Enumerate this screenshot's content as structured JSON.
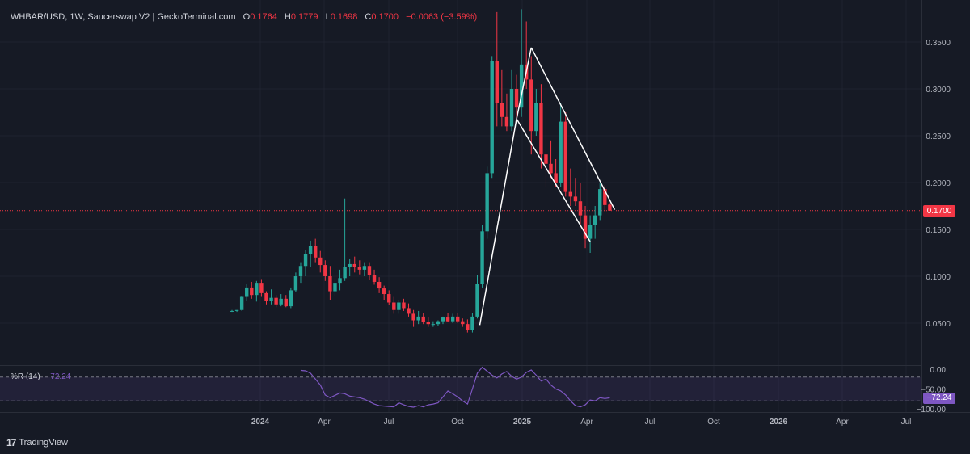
{
  "header": {
    "symbol": "WHBAR/USD, 1W, Saucerswap V2 | GeckoTerminal.com",
    "o_label": "O",
    "o_value": "0.1764",
    "h_label": "H",
    "h_value": "0.1779",
    "l_label": "L",
    "l_value": "0.1698",
    "c_label": "C",
    "c_value": "0.1700",
    "change": "−0.0063 (−3.59%)"
  },
  "last_price_tag": "0.1700",
  "rsi": {
    "label": "%R (14)",
    "value": "−72.24",
    "tag": "−72.24"
  },
  "brand": {
    "logo": "17",
    "name": "TradingView"
  },
  "colors": {
    "up": "#26a69a",
    "down": "#f23645",
    "background": "#161a25",
    "indicator": "#7e57c2",
    "pattern": "#ffffff"
  },
  "chart_data": [
    {
      "type": "candlestick",
      "title": "WHBAR/USD, 1W",
      "x_axis_labels": [
        "2024",
        "Apr",
        "Jul",
        "Oct",
        "2025",
        "Apr",
        "Jul",
        "Oct",
        "2026",
        "Apr",
        "Jul"
      ],
      "x_axis_bold": [
        "2024",
        "2025",
        "2026"
      ],
      "y_axis_labels": [
        "0.3500",
        "0.3000",
        "0.2500",
        "0.2000",
        "0.1500",
        "0.1000",
        "0.0500"
      ],
      "ylim": [
        0.0,
        0.385
      ],
      "grid": true,
      "last_price": 0.17,
      "candles": [
        [
          0.063,
          0.064,
          0.062,
          0.063
        ],
        [
          0.063,
          0.064,
          0.062,
          0.064
        ],
        [
          0.064,
          0.079,
          0.063,
          0.078
        ],
        [
          0.078,
          0.092,
          0.074,
          0.088
        ],
        [
          0.088,
          0.094,
          0.076,
          0.08
        ],
        [
          0.08,
          0.095,
          0.073,
          0.093
        ],
        [
          0.093,
          0.097,
          0.078,
          0.082
        ],
        [
          0.082,
          0.084,
          0.07,
          0.074
        ],
        [
          0.074,
          0.086,
          0.07,
          0.077
        ],
        [
          0.077,
          0.08,
          0.067,
          0.07
        ],
        [
          0.07,
          0.081,
          0.068,
          0.076
        ],
        [
          0.076,
          0.08,
          0.067,
          0.068
        ],
        [
          0.068,
          0.088,
          0.066,
          0.085
        ],
        [
          0.085,
          0.104,
          0.083,
          0.1
        ],
        [
          0.1,
          0.115,
          0.093,
          0.111
        ],
        [
          0.111,
          0.128,
          0.1,
          0.124
        ],
        [
          0.124,
          0.138,
          0.11,
          0.132
        ],
        [
          0.132,
          0.14,
          0.115,
          0.12
        ],
        [
          0.12,
          0.127,
          0.104,
          0.112
        ],
        [
          0.112,
          0.117,
          0.095,
          0.1
        ],
        [
          0.1,
          0.111,
          0.075,
          0.084
        ],
        [
          0.084,
          0.098,
          0.079,
          0.093
        ],
        [
          0.093,
          0.107,
          0.085,
          0.098
        ],
        [
          0.098,
          0.183,
          0.095,
          0.11
        ],
        [
          0.11,
          0.119,
          0.1,
          0.113
        ],
        [
          0.113,
          0.121,
          0.104,
          0.11
        ],
        [
          0.11,
          0.117,
          0.102,
          0.107
        ],
        [
          0.107,
          0.115,
          0.1,
          0.111
        ],
        [
          0.111,
          0.115,
          0.096,
          0.101
        ],
        [
          0.101,
          0.107,
          0.091,
          0.094
        ],
        [
          0.094,
          0.099,
          0.082,
          0.087
        ],
        [
          0.087,
          0.09,
          0.075,
          0.081
        ],
        [
          0.081,
          0.085,
          0.069,
          0.072
        ],
        [
          0.072,
          0.078,
          0.06,
          0.064
        ],
        [
          0.064,
          0.075,
          0.06,
          0.072
        ],
        [
          0.072,
          0.076,
          0.063,
          0.066
        ],
        [
          0.066,
          0.071,
          0.057,
          0.06
        ],
        [
          0.06,
          0.064,
          0.046,
          0.053
        ],
        [
          0.053,
          0.063,
          0.049,
          0.057
        ],
        [
          0.057,
          0.061,
          0.049,
          0.051
        ],
        [
          0.051,
          0.056,
          0.046,
          0.049
        ],
        [
          0.049,
          0.052,
          0.046,
          0.049
        ],
        [
          0.049,
          0.053,
          0.047,
          0.052
        ],
        [
          0.052,
          0.057,
          0.049,
          0.056
        ],
        [
          0.056,
          0.061,
          0.051,
          0.052
        ],
        [
          0.052,
          0.06,
          0.05,
          0.057
        ],
        [
          0.057,
          0.061,
          0.05,
          0.052
        ],
        [
          0.052,
          0.055,
          0.046,
          0.049
        ],
        [
          0.049,
          0.054,
          0.04,
          0.043
        ],
        [
          0.043,
          0.061,
          0.04,
          0.057
        ],
        [
          0.057,
          0.101,
          0.055,
          0.092
        ],
        [
          0.092,
          0.155,
          0.088,
          0.148
        ],
        [
          0.148,
          0.217,
          0.14,
          0.21
        ],
        [
          0.21,
          0.335,
          0.205,
          0.33
        ],
        [
          0.33,
          0.382,
          0.26,
          0.285
        ],
        [
          0.285,
          0.32,
          0.26,
          0.27
        ],
        [
          0.27,
          0.295,
          0.255,
          0.26
        ],
        [
          0.26,
          0.32,
          0.255,
          0.3
        ],
        [
          0.3,
          0.315,
          0.265,
          0.28
        ],
        [
          0.28,
          0.385,
          0.27,
          0.326
        ],
        [
          0.326,
          0.372,
          0.3,
          0.31
        ],
        [
          0.31,
          0.335,
          0.23,
          0.255
        ],
        [
          0.255,
          0.3,
          0.25,
          0.285
        ],
        [
          0.285,
          0.305,
          0.215,
          0.23
        ],
        [
          0.23,
          0.275,
          0.195,
          0.22
        ],
        [
          0.22,
          0.245,
          0.205,
          0.21
        ],
        [
          0.21,
          0.225,
          0.195,
          0.2
        ],
        [
          0.2,
          0.285,
          0.195,
          0.265
        ],
        [
          0.265,
          0.275,
          0.185,
          0.19
        ],
        [
          0.19,
          0.215,
          0.175,
          0.185
        ],
        [
          0.185,
          0.205,
          0.175,
          0.18
        ],
        [
          0.18,
          0.2,
          0.155,
          0.165
        ],
        [
          0.165,
          0.175,
          0.13,
          0.14
        ],
        [
          0.14,
          0.165,
          0.125,
          0.155
        ],
        [
          0.155,
          0.175,
          0.14,
          0.165
        ],
        [
          0.165,
          0.2,
          0.16,
          0.193
        ],
        [
          0.193,
          0.197,
          0.17,
          0.176
        ],
        [
          0.1764,
          0.1779,
          0.1698,
          0.17
        ]
      ],
      "pattern_lines": [
        {
          "from": {
            "week": 50.5,
            "price": 0.048
          },
          "to": {
            "week": 58.0,
            "price": 0.268
          }
        },
        {
          "from": {
            "week": 58.0,
            "price": 0.268
          },
          "to": {
            "week": 61.0,
            "price": 0.344
          }
        },
        {
          "from": {
            "week": 58.0,
            "price": 0.268
          },
          "to": {
            "week": 73.0,
            "price": 0.137
          }
        },
        {
          "from": {
            "week": 61.0,
            "price": 0.344
          },
          "to": {
            "week": 78.0,
            "price": 0.171
          }
        }
      ]
    },
    {
      "type": "line",
      "title": "%R (14)",
      "y_axis_labels": [
        "0.00",
        "−50.00",
        "−100.00"
      ],
      "ylim": [
        -105,
        3
      ],
      "levels": [
        -20,
        -80
      ],
      "series": [
        {
          "values": [
            null,
            null,
            null,
            null,
            null,
            null,
            null,
            null,
            null,
            null,
            null,
            null,
            null,
            null,
            -3,
            -4,
            -10,
            -25,
            -40,
            -65,
            -72,
            -66,
            -60,
            -62,
            -68,
            -70,
            -72,
            -76,
            -82,
            -88,
            -92,
            -93,
            -94,
            -95,
            -85,
            -90,
            -94,
            -96,
            -92,
            -95,
            -90,
            -88,
            -85,
            -70,
            -55,
            -62,
            -70,
            -80,
            -88,
            -50,
            -10,
            5,
            -5,
            -15,
            -22,
            -12,
            -6,
            -18,
            -25,
            -20,
            -8,
            -2,
            -15,
            -30,
            -25,
            -40,
            -50,
            -55,
            -65,
            -80,
            -92,
            -95,
            -90,
            -78,
            -80,
            -72,
            -74,
            -72.24
          ]
        }
      ]
    }
  ]
}
